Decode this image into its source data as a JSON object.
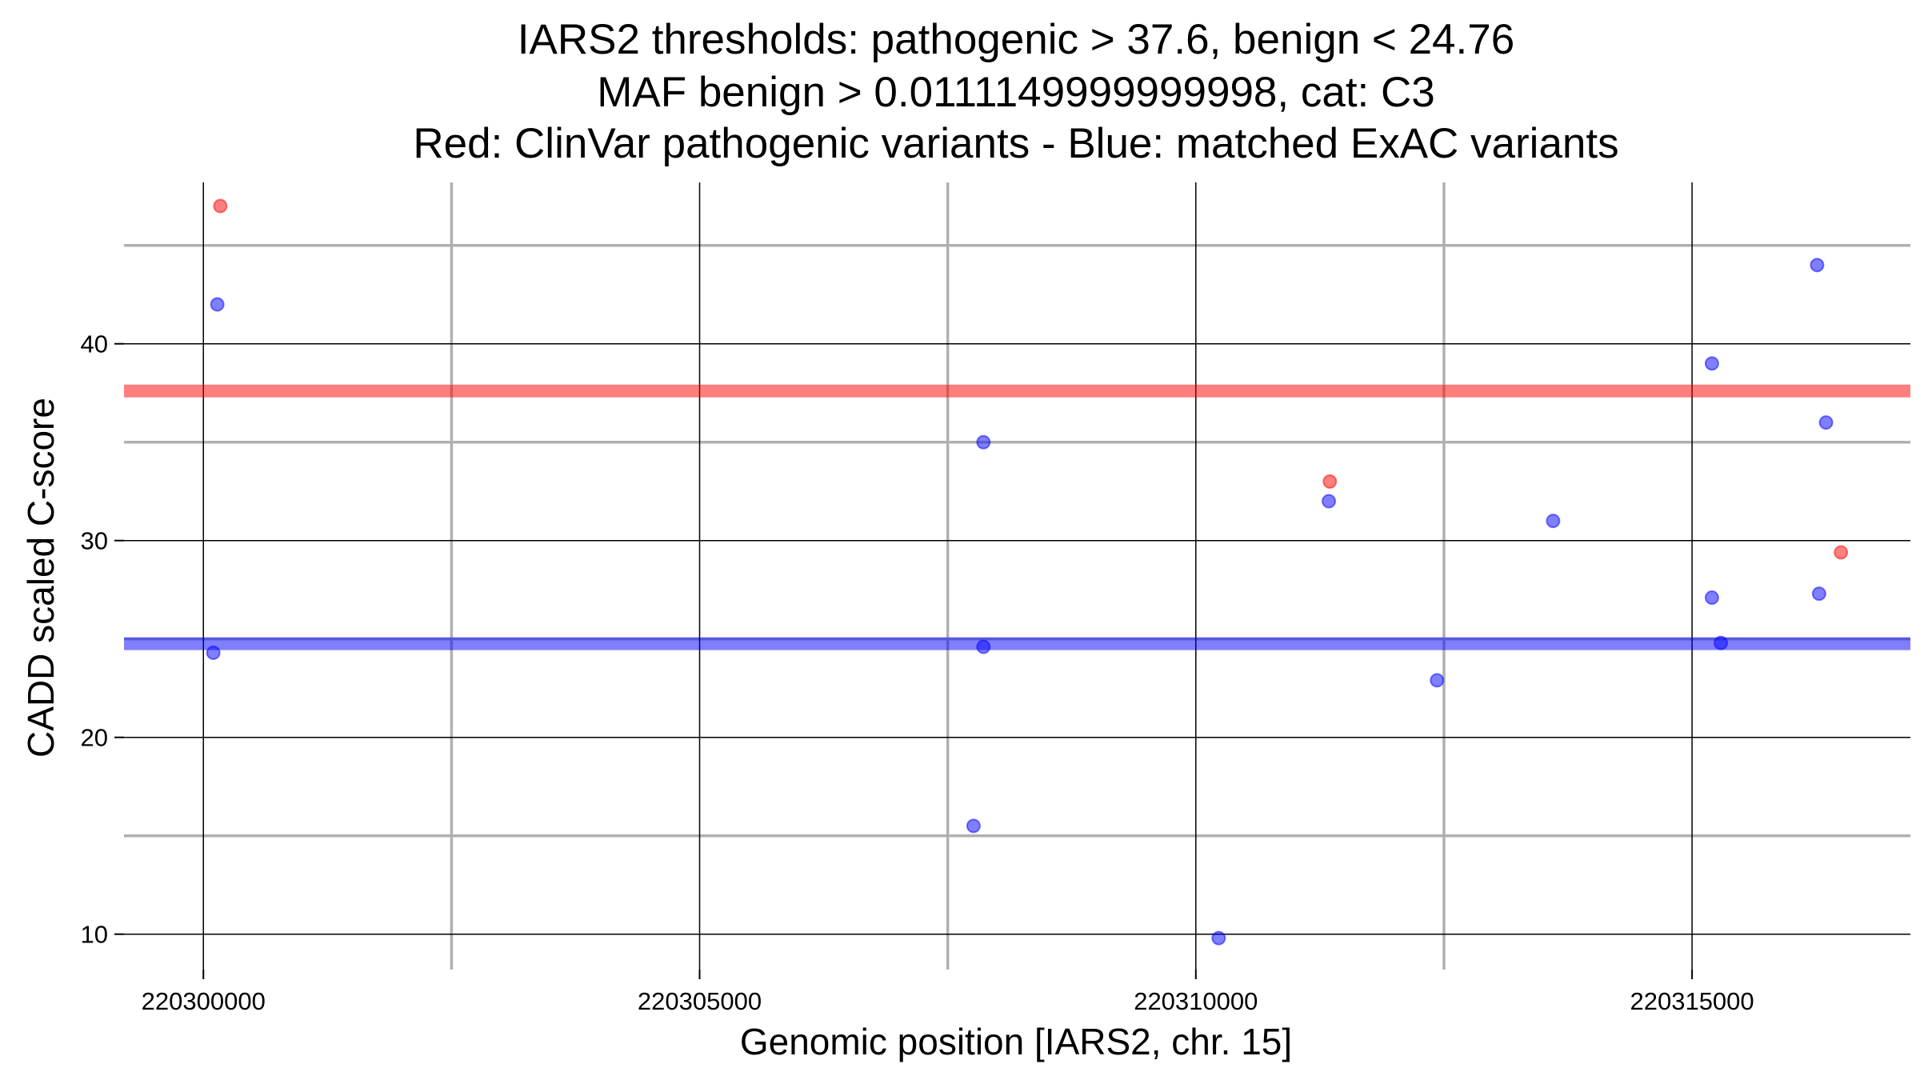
{
  "chart_data": {
    "type": "scatter",
    "title": [
      "IARS2 thresholds: pathogenic > 37.6, benign < 24.76",
      "MAF benign > 0.0111149999999998, cat: C3",
      "Red: ClinVar pathogenic variants - Blue: matched ExAC variants"
    ],
    "xlabel": "Genomic position [IARS2, chr. 15]",
    "ylabel": "CADD scaled C-score",
    "xlim": [
      220299200,
      220317200
    ],
    "ylim": [
      8.2,
      48.2
    ],
    "x_ticks": [
      220300000,
      220305000,
      220310000,
      220315000
    ],
    "x_tick_labels": [
      "220300000",
      "220305000",
      "220310000",
      "220315000"
    ],
    "x_minor_ticks": [
      220302500,
      220307500,
      220312500
    ],
    "y_ticks": [
      10,
      20,
      30,
      40
    ],
    "y_tick_labels": [
      "10",
      "20",
      "30",
      "40"
    ],
    "y_minor_ticks": [
      15,
      25,
      35,
      45
    ],
    "thresholds": [
      {
        "name": "pathogenic",
        "value": 37.6,
        "color": "#ff0000"
      },
      {
        "name": "benign",
        "value": 24.76,
        "color": "#0000ff"
      }
    ],
    "series": [
      {
        "name": "ClinVar pathogenic variants",
        "color": "#ff0000",
        "points": [
          {
            "x": 220300170,
            "y": 47
          },
          {
            "x": 220311350,
            "y": 33
          },
          {
            "x": 220316500,
            "y": 29.4
          }
        ]
      },
      {
        "name": "matched ExAC variants",
        "color": "#0000ff",
        "points": [
          {
            "x": 220300140,
            "y": 42
          },
          {
            "x": 220300100,
            "y": 24.3
          },
          {
            "x": 220307860,
            "y": 35
          },
          {
            "x": 220307860,
            "y": 24.6
          },
          {
            "x": 220307760,
            "y": 15.5
          },
          {
            "x": 220311340,
            "y": 32
          },
          {
            "x": 220310230,
            "y": 9.8
          },
          {
            "x": 220312430,
            "y": 22.9
          },
          {
            "x": 220313600,
            "y": 31
          },
          {
            "x": 220315200,
            "y": 39
          },
          {
            "x": 220315200,
            "y": 27.1
          },
          {
            "x": 220315290,
            "y": 24.8
          },
          {
            "x": 220316260,
            "y": 44
          },
          {
            "x": 220316350,
            "y": 36
          },
          {
            "x": 220316280,
            "y": 27.3
          }
        ]
      }
    ]
  }
}
